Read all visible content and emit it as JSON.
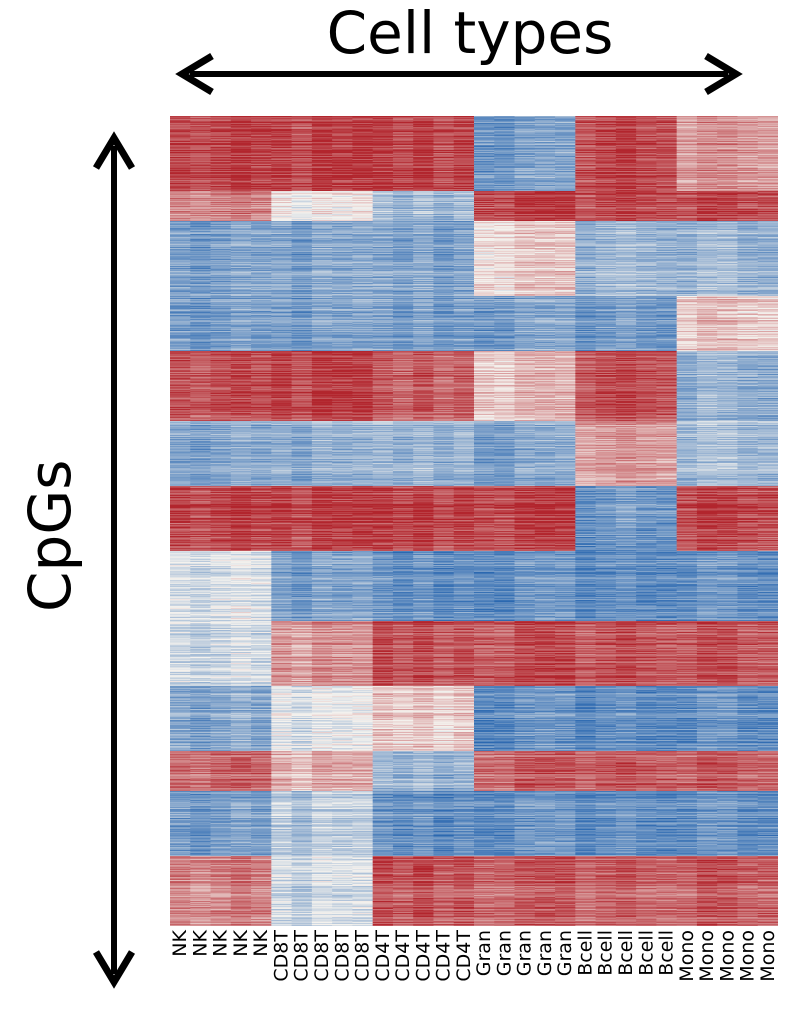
{
  "chart_data": {
    "type": "heatmap",
    "title": "",
    "xlabel": "Cell types",
    "ylabel": "CpGs",
    "columns": [
      "NK",
      "NK",
      "NK",
      "NK",
      "NK",
      "CD8T",
      "CD8T",
      "CD8T",
      "CD8T",
      "CD8T",
      "CD4T",
      "CD4T",
      "CD4T",
      "CD4T",
      "CD4T",
      "Gran",
      "Gran",
      "Gran",
      "Gran",
      "Gran",
      "Bcell",
      "Bcell",
      "Bcell",
      "Bcell",
      "Bcell",
      "Mono",
      "Mono",
      "Mono",
      "Mono",
      "Mono"
    ],
    "groups": [
      "NK",
      "CD8T",
      "CD4T",
      "Gran",
      "Bcell",
      "Mono"
    ],
    "colorscale": {
      "low": "#2b68b0",
      "mid": "#f4f2ee",
      "high": "#b2252d"
    },
    "value_range": [
      0,
      1
    ],
    "row_blocks": [
      {
        "rows": 75,
        "values": [
          0.92,
          0.93,
          0.93,
          0.2,
          0.93,
          0.72
        ]
      },
      {
        "rows": 30,
        "values": [
          0.75,
          0.5,
          0.3,
          0.93,
          0.92,
          0.9
        ]
      },
      {
        "rows": 75,
        "values": [
          0.2,
          0.22,
          0.22,
          0.58,
          0.3,
          0.28
        ]
      },
      {
        "rows": 55,
        "values": [
          0.18,
          0.2,
          0.2,
          0.2,
          0.2,
          0.6
        ]
      },
      {
        "rows": 70,
        "values": [
          0.88,
          0.92,
          0.85,
          0.62,
          0.9,
          0.25
        ]
      },
      {
        "rows": 65,
        "values": [
          0.22,
          0.25,
          0.28,
          0.22,
          0.72,
          0.3
        ]
      },
      {
        "rows": 65,
        "values": [
          0.9,
          0.92,
          0.92,
          0.92,
          0.18,
          0.9
        ]
      },
      {
        "rows": 70,
        "values": [
          0.42,
          0.2,
          0.15,
          0.15,
          0.15,
          0.15
        ]
      },
      {
        "rows": 65,
        "values": [
          0.4,
          0.72,
          0.9,
          0.9,
          0.9,
          0.88
        ]
      },
      {
        "rows": 65,
        "values": [
          0.22,
          0.45,
          0.6,
          0.15,
          0.15,
          0.15
        ]
      },
      {
        "rows": 40,
        "values": [
          0.82,
          0.65,
          0.28,
          0.85,
          0.88,
          0.85
        ]
      },
      {
        "rows": 65,
        "values": [
          0.18,
          0.35,
          0.15,
          0.15,
          0.15,
          0.15
        ]
      },
      {
        "rows": 70,
        "values": [
          0.75,
          0.4,
          0.88,
          0.85,
          0.85,
          0.85
        ]
      }
    ]
  }
}
